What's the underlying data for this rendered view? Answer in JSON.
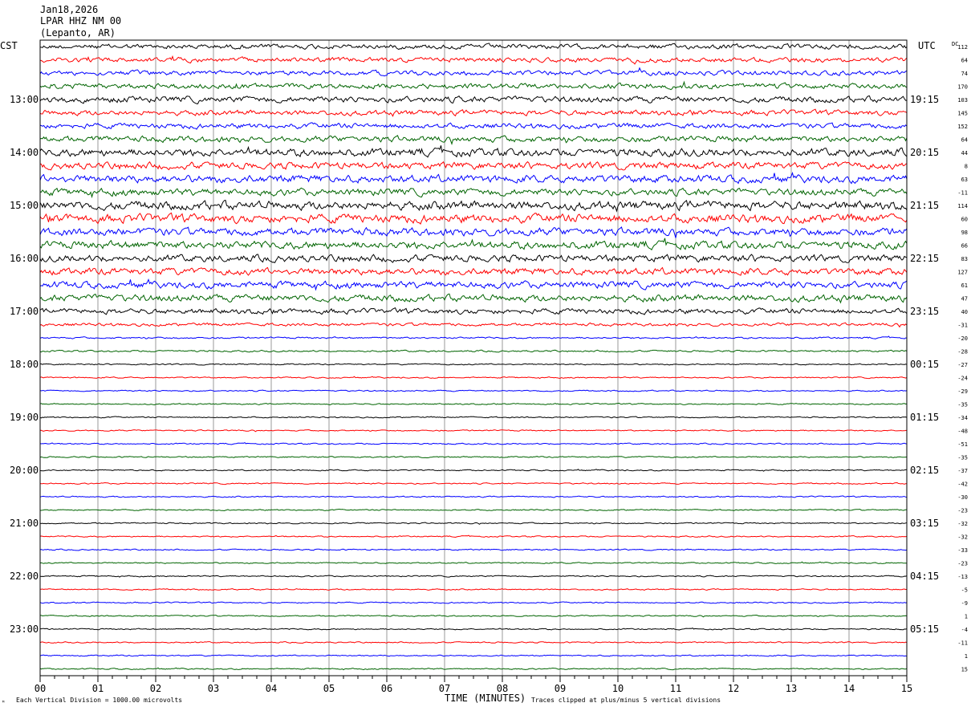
{
  "header": {
    "date": "Jan18,2026",
    "station": "LPAR HHZ NM 00",
    "location": "(Lepanto, AR)"
  },
  "labels": {
    "left_zone": "CST",
    "right_zone": "UTC",
    "dc_header": "DC",
    "x_axis_title": "TIME (MINUTES)",
    "scale_note": "Each Vertical Division = 1000.00 microvolts",
    "clip_note": "Traces clipped at plus/minus 5 vertical divisions",
    "corner_mark": "ᴹ"
  },
  "colors": {
    "black": "#000000",
    "red": "#ff0000",
    "blue": "#0000ff",
    "green": "#006400",
    "grid": "#808080"
  },
  "chart_data": {
    "type": "line",
    "description_type": "helicorder",
    "xlabel": "TIME (MINUTES)",
    "xlim": [
      0,
      15
    ],
    "x_ticks": [
      "00",
      "01",
      "02",
      "03",
      "04",
      "05",
      "06",
      "07",
      "08",
      "09",
      "10",
      "11",
      "12",
      "13",
      "14",
      "15"
    ],
    "rows_per_hour": 4,
    "minutes_per_row": 15,
    "color_cycle": [
      "black",
      "red",
      "blue",
      "green"
    ],
    "left_hour_labels": [
      "13:00",
      "14:00",
      "15:00",
      "16:00",
      "17:00",
      "18:00",
      "19:00",
      "20:00",
      "21:00",
      "22:00",
      "23:00"
    ],
    "right_hour_labels": [
      "19:15",
      "20:15",
      "21:15",
      "22:15",
      "23:15",
      "00:15",
      "01:15",
      "02:15",
      "03:15",
      "04:15",
      "05:15"
    ],
    "label_row_indices": [
      4,
      8,
      12,
      16,
      20,
      24,
      28,
      32,
      36,
      40,
      44
    ],
    "dc_offsets": [
      "112",
      "64",
      "74",
      "170",
      "103",
      "145",
      "152",
      "64",
      "44",
      "8",
      "63",
      "-11",
      "114",
      "60",
      "98",
      "66",
      "83",
      "127",
      "61",
      "47",
      "40",
      "-31",
      "-20",
      "-28",
      "-27",
      "-24",
      "-29",
      "-35",
      "-34",
      "-48",
      "-51",
      "-35",
      "-37",
      "-42",
      "-30",
      "-23",
      "-32",
      "-32",
      "-33",
      "-23",
      "-13",
      "-5",
      "-9",
      "1",
      "-4",
      "-11",
      "1",
      "15"
    ],
    "row_amplitudes": [
      0.55,
      0.55,
      0.55,
      0.6,
      0.7,
      0.6,
      0.6,
      0.7,
      0.9,
      0.8,
      0.9,
      0.8,
      1.0,
      1.0,
      0.9,
      0.9,
      0.8,
      0.8,
      0.8,
      0.8,
      0.6,
      0.35,
      0.2,
      0.2,
      0.15,
      0.15,
      0.15,
      0.15,
      0.15,
      0.15,
      0.15,
      0.15,
      0.15,
      0.15,
      0.15,
      0.15,
      0.15,
      0.15,
      0.15,
      0.15,
      0.15,
      0.15,
      0.15,
      0.15,
      0.15,
      0.15,
      0.15,
      0.15
    ]
  }
}
